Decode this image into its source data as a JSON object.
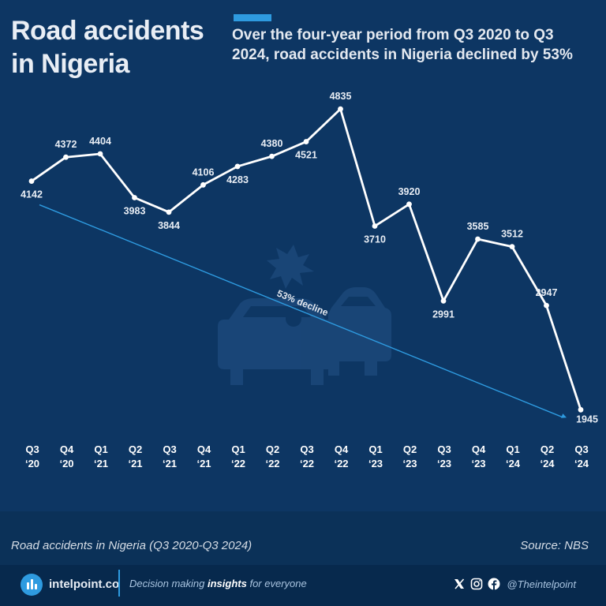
{
  "header": {
    "title": "Road accidents in Nigeria",
    "subtitle": "Over the four-year period from Q3 2020 to Q3 2024, road accidents in Nigeria declined by 53%"
  },
  "chart_data": {
    "type": "line",
    "title": "Road accidents in Nigeria",
    "xlabel": "",
    "ylabel": "",
    "grid": false,
    "categories": [
      [
        "Q3",
        "‘20"
      ],
      [
        "Q4",
        "‘20"
      ],
      [
        "Q1",
        "‘21"
      ],
      [
        "Q2",
        "‘21"
      ],
      [
        "Q3",
        "‘21"
      ],
      [
        "Q4",
        "‘21"
      ],
      [
        "Q1",
        "‘22"
      ],
      [
        "Q2",
        "‘22"
      ],
      [
        "Q3",
        "‘22"
      ],
      [
        "Q4",
        "‘22"
      ],
      [
        "Q1",
        "‘23"
      ],
      [
        "Q2",
        "‘23"
      ],
      [
        "Q3",
        "‘23"
      ],
      [
        "Q4",
        "‘23"
      ],
      [
        "Q1",
        "‘24"
      ],
      [
        "Q2",
        "‘24"
      ],
      [
        "Q3",
        "‘24"
      ]
    ],
    "values": [
      4142,
      4372,
      4404,
      3983,
      3844,
      4106,
      4283,
      4380,
      4521,
      4835,
      3710,
      3920,
      2991,
      3585,
      3512,
      2947,
      1945
    ],
    "label_position": [
      "below",
      "above",
      "above",
      "below",
      "below",
      "above",
      "below",
      "above",
      "below",
      "above",
      "below",
      "above",
      "below",
      "above",
      "above",
      "above",
      "below"
    ],
    "ylim": [
      1500,
      5200
    ],
    "line_color": "#ffffff",
    "trend": {
      "label": "53% decline",
      "from_value": 4142,
      "to_value": 1945,
      "color": "#2e9be0"
    }
  },
  "footer": {
    "caption": "Road accidents in Nigeria (Q3 2020-Q3 2024)",
    "source": "Source: NBS"
  },
  "branding": {
    "name": "intelpoint.co",
    "tagline_pre": "Decision making ",
    "tagline_bold": "insights",
    "tagline_post": " for everyone",
    "handle": "@Theintelpoint"
  },
  "colors": {
    "background": "#0d3663",
    "accent": "#2e9be0",
    "footer_band": "#0b3158",
    "bottom_bar": "#07294d"
  }
}
